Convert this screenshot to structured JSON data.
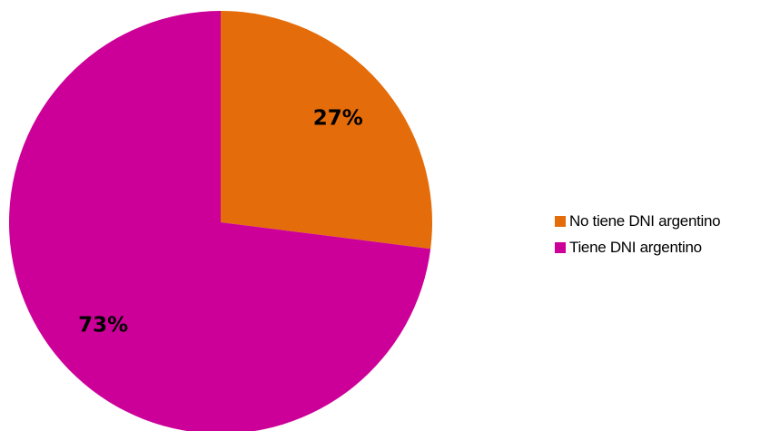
{
  "chart_data": {
    "type": "pie",
    "title": "",
    "slices": [
      {
        "name": "No tiene DNI argentino",
        "value": 27,
        "label": "27%",
        "color": "#E46C0A"
      },
      {
        "name": "Tiene DNI argentino",
        "value": 73,
        "label": "73%",
        "color": "#CC0099"
      }
    ],
    "start_angle": "12 o'clock",
    "direction": "clockwise",
    "legend_position": "right"
  },
  "legend": {
    "items": [
      {
        "label": "No tiene DNI argentino",
        "color": "#E46C0A"
      },
      {
        "label": "Tiene DNI argentino",
        "color": "#CC0099"
      }
    ]
  }
}
